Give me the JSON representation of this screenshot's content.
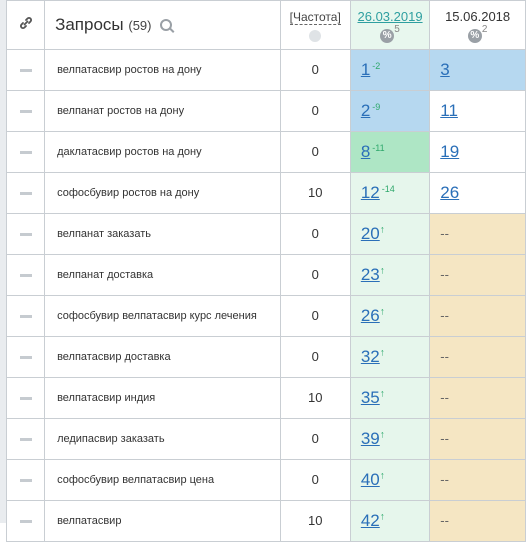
{
  "header": {
    "query_title": "Запросы",
    "query_count": "(59)",
    "freq_label": "[Частота]",
    "date1": "26.03.2019",
    "date1_count": "5",
    "date2": "15.06.2018",
    "date2_count": "2",
    "pct_symbol": "%"
  },
  "rows": [
    {
      "query": "велпатасвир ростов на дону",
      "freq": "0",
      "d1_pos": "1",
      "d1_change": "-2",
      "d1_bg": "blue",
      "d2_pos": "3",
      "d2_bg": "blue"
    },
    {
      "query": "велпанат ростов на дону",
      "freq": "0",
      "d1_pos": "2",
      "d1_change": "-9",
      "d1_bg": "blue",
      "d2_pos": "11",
      "d2_bg": "white"
    },
    {
      "query": "даклатасвир ростов на дону",
      "freq": "0",
      "d1_pos": "8",
      "d1_change": "-11",
      "d1_bg": "green",
      "d2_pos": "19",
      "d2_bg": "white"
    },
    {
      "query": "софосбувир ростов на дону",
      "freq": "10",
      "d1_pos": "12",
      "d1_change": "-14",
      "d1_bg": "lightgreen",
      "d2_pos": "26",
      "d2_bg": "white"
    },
    {
      "query": "велпанат заказать",
      "freq": "0",
      "d1_pos": "20",
      "d1_change": "↑",
      "d1_bg": "lightgreen",
      "d2_pos": "--",
      "d2_bg": "orange"
    },
    {
      "query": "велпанат доставка",
      "freq": "0",
      "d1_pos": "23",
      "d1_change": "↑",
      "d1_bg": "lightgreen",
      "d2_pos": "--",
      "d2_bg": "orange"
    },
    {
      "query": "софосбувир велпатасвир курс лечения",
      "freq": "0",
      "d1_pos": "26",
      "d1_change": "↑",
      "d1_bg": "lightgreen",
      "d2_pos": "--",
      "d2_bg": "orange"
    },
    {
      "query": "велпатасвир доставка",
      "freq": "0",
      "d1_pos": "32",
      "d1_change": "↑",
      "d1_bg": "lightgreen",
      "d2_pos": "--",
      "d2_bg": "orange"
    },
    {
      "query": "велпатасвир индия",
      "freq": "10",
      "d1_pos": "35",
      "d1_change": "↑",
      "d1_bg": "lightgreen",
      "d2_pos": "--",
      "d2_bg": "orange"
    },
    {
      "query": "ледипасвир заказать",
      "freq": "0",
      "d1_pos": "39",
      "d1_change": "↑",
      "d1_bg": "lightgreen",
      "d2_pos": "--",
      "d2_bg": "orange"
    },
    {
      "query": "софосбувир велпатасвир цена",
      "freq": "0",
      "d1_pos": "40",
      "d1_change": "↑",
      "d1_bg": "lightgreen",
      "d2_pos": "--",
      "d2_bg": "orange"
    },
    {
      "query": "велпатасвир",
      "freq": "10",
      "d1_pos": "42",
      "d1_change": "↑",
      "d1_bg": "lightgreen",
      "d2_pos": "--",
      "d2_bg": "orange"
    }
  ],
  "icons": {
    "link": "link-icon",
    "search": "search-icon",
    "globe": "globe-icon",
    "row_toggle": "minus-icon"
  },
  "colors": {
    "blue": "#b6d8f0",
    "green": "#aee6c5",
    "lightgreen": "#e6f6ec",
    "orange": "#f5e6c3",
    "link": "#2a6fb8",
    "date_active": "#2e9fa0"
  }
}
